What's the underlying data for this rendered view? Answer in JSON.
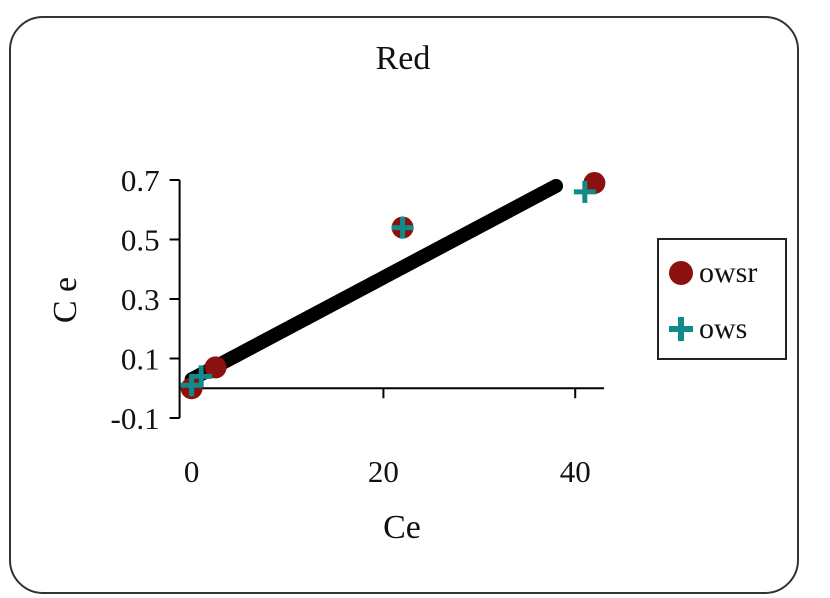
{
  "chart_data": {
    "type": "scatter",
    "title": "Red",
    "xlabel": "Ce",
    "ylabel": "C e",
    "xlim": [
      -1,
      43
    ],
    "ylim": [
      -0.1,
      0.7
    ],
    "xticks": [
      0,
      20,
      40
    ],
    "yticks": [
      -0.1,
      0.1,
      0.3,
      0.5,
      0.7
    ],
    "ytick_labels": [
      "-0.1",
      "0.1",
      "0.3",
      "0.5",
      "0.7"
    ],
    "xtick_labels": [
      "0",
      "20",
      "40"
    ],
    "grid": false,
    "legend_position": "right",
    "series": [
      {
        "name": "owsr",
        "marker": "circle",
        "color": "#8b1010",
        "x": [
          0,
          2.5,
          22,
          42
        ],
        "y": [
          0,
          0.07,
          0.54,
          0.69
        ]
      },
      {
        "name": "ows",
        "marker": "plus",
        "color": "#128a8a",
        "x": [
          0,
          1,
          22,
          41
        ],
        "y": [
          0.01,
          0.04,
          0.54,
          0.66
        ]
      }
    ],
    "fit_line": {
      "color": "#000000",
      "x": [
        0,
        38
      ],
      "y": [
        0.03,
        0.68
      ]
    }
  }
}
